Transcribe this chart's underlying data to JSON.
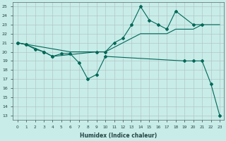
{
  "xlabel": "Humidex (Indice chaleur)",
  "bg_color": "#c8ece8",
  "grid_color": "#b0c8c8",
  "line_color": "#006858",
  "xlim": [
    -0.5,
    23.5
  ],
  "ylim": [
    12.5,
    25.5
  ],
  "xticks": [
    0,
    1,
    2,
    3,
    4,
    5,
    6,
    7,
    8,
    9,
    10,
    11,
    12,
    13,
    14,
    15,
    16,
    17,
    18,
    19,
    20,
    21,
    22,
    23
  ],
  "yticks": [
    13,
    14,
    15,
    16,
    17,
    18,
    19,
    20,
    21,
    22,
    23,
    24,
    25
  ],
  "series": [
    {
      "x": [
        0,
        3,
        6,
        9,
        10,
        11,
        12,
        13,
        14,
        15,
        16,
        17,
        18,
        19,
        20,
        21,
        22,
        23
      ],
      "y": [
        21,
        20.5,
        20,
        20,
        20,
        20.5,
        21,
        21.5,
        22,
        22,
        22,
        22,
        22.5,
        22.5,
        22.5,
        23,
        23,
        23
      ],
      "marker": false
    },
    {
      "x": [
        0,
        1,
        2,
        3,
        4,
        9,
        10,
        11,
        12,
        13,
        14,
        15,
        16,
        17,
        18,
        20,
        21
      ],
      "y": [
        21,
        20.8,
        20.3,
        20,
        19.5,
        20,
        20,
        21,
        21.5,
        23,
        25,
        23.5,
        23,
        22.5,
        24.5,
        23,
        23
      ],
      "marker": true
    },
    {
      "x": [
        0,
        1,
        3,
        4,
        5,
        6,
        7,
        8,
        9,
        10,
        19,
        20,
        21,
        22,
        23
      ],
      "y": [
        21,
        20.8,
        20,
        19.5,
        19.8,
        19.8,
        18.8,
        17,
        17.5,
        19.5,
        19,
        19,
        19,
        16.5,
        13
      ],
      "marker": true
    }
  ]
}
